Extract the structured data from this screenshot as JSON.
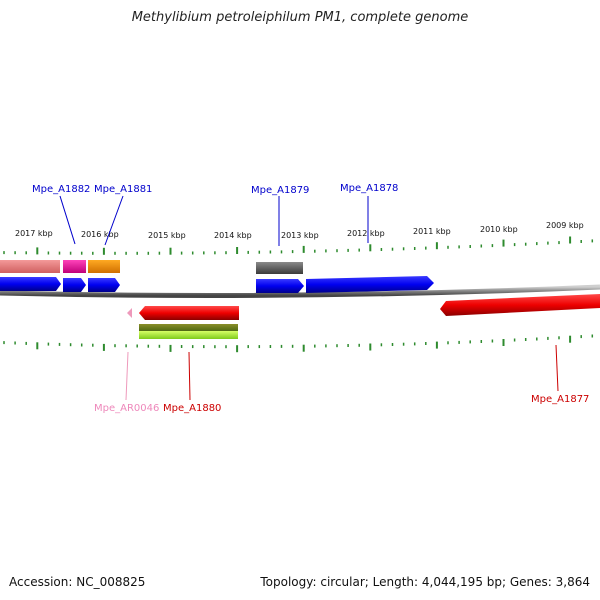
{
  "title": "Methylibium petroleiphilum PM1, complete genome",
  "footer": {
    "accession": "Accession: NC_008825",
    "stats": "Topology: circular; Length: 4,044,195 bp; Genes: 3,864"
  },
  "colors": {
    "backbone": "#8a8a8a",
    "tick": "#2e8b2e",
    "cds_forward": "#0000ee",
    "cds_reverse": "#ee0000",
    "rna_label": "#ee88bb",
    "cds_label_forward": "#0000cc",
    "cds_label_reverse": "#cc0000"
  },
  "scale_labels": [
    "2017 kbp",
    "2016 kbp",
    "2015 kbp",
    "2014 kbp",
    "2013 kbp",
    "2012 kbp",
    "2011 kbp",
    "2010 kbp",
    "2009 kbp"
  ],
  "gene_labels": {
    "a1882": "Mpe_A1882",
    "a1881": "Mpe_A1881",
    "a1879": "Mpe_A1879",
    "a1878": "Mpe_A1878",
    "ar0046": "Mpe_AR0046",
    "a1880": "Mpe_A1880",
    "a1877": "Mpe_A1877"
  }
}
